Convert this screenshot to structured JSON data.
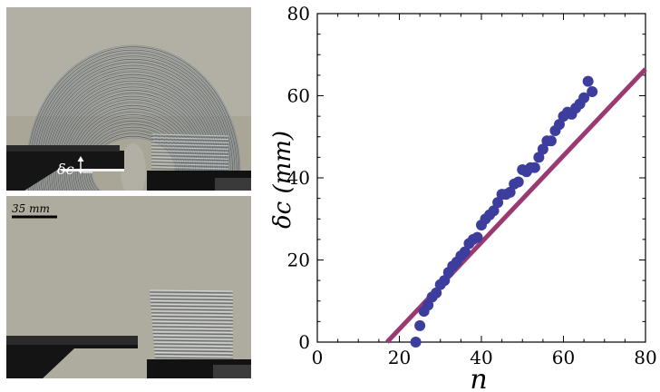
{
  "photos": {
    "top": {
      "label": "δc"
    },
    "bottom": {
      "scale_label": "35 mm"
    }
  },
  "chart_data": {
    "type": "scatter",
    "xlabel": "n",
    "ylabel": "δc (mm)",
    "xlim": [
      0,
      80
    ],
    "ylim": [
      0,
      80
    ],
    "xticks": [
      0,
      20,
      40,
      60,
      80
    ],
    "yticks": [
      0,
      20,
      40,
      60,
      80
    ],
    "grid": false,
    "legend": "none",
    "series": [
      {
        "kind": "points",
        "color": "#3d3d9e",
        "x": [
          24,
          25,
          26,
          27,
          28,
          29,
          30,
          31,
          32,
          33,
          34,
          35,
          36,
          37,
          38,
          39,
          40,
          41,
          42,
          43,
          44,
          45,
          46,
          47,
          48,
          49,
          50,
          51,
          52,
          53,
          54,
          55,
          56,
          57,
          58,
          59,
          60,
          61,
          62,
          63,
          64,
          65,
          66,
          67
        ],
        "y": [
          0,
          4,
          7.5,
          9,
          11,
          12,
          14,
          15,
          17,
          18.5,
          19.5,
          21,
          22,
          24,
          25,
          25.5,
          28.5,
          30,
          31,
          32,
          34,
          36,
          36,
          36.5,
          38.5,
          39,
          42,
          41.5,
          42.5,
          42.5,
          45,
          47,
          49,
          49,
          51.5,
          53,
          55,
          56,
          55.5,
          57,
          58,
          59.5,
          63.5,
          61
        ]
      },
      {
        "kind": "line",
        "color": "#9b3a72",
        "x": [
          17,
          80
        ],
        "y": [
          0,
          66.5
        ]
      }
    ]
  }
}
